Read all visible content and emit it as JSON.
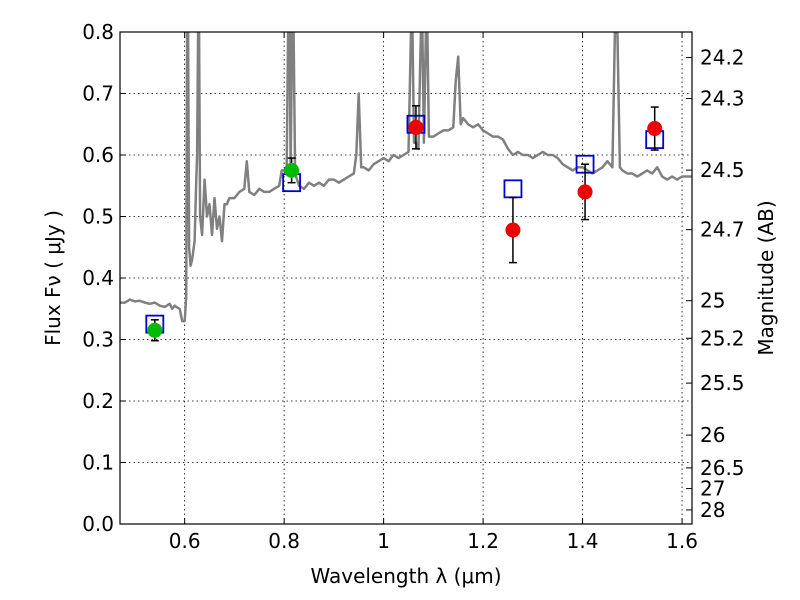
{
  "chart_data": {
    "type": "scatter",
    "xlabel": "Wavelength  λ (μm)",
    "ylabel": "Flux  Fν  ( μJy )",
    "y2label": "Magnitude (AB)",
    "xlim": [
      0.47,
      1.62
    ],
    "ylim": [
      0.0,
      0.8
    ],
    "grid": true,
    "x_ticks": [
      0.6,
      0.8,
      1.0,
      1.2,
      1.4,
      1.6
    ],
    "x_tick_labels": [
      "0.6",
      "0.8",
      "1",
      "1.2",
      "1.4",
      "1.6"
    ],
    "y_ticks": [
      0.0,
      0.1,
      0.2,
      0.3,
      0.4,
      0.5,
      0.6,
      0.7,
      0.8
    ],
    "y_tick_labels": [
      "0.0",
      "0.1",
      "0.2",
      "0.3",
      "0.4",
      "0.5",
      "0.6",
      "0.7",
      "0.8"
    ],
    "mag_ticks": [
      {
        "label": "24.2",
        "value": 24.2
      },
      {
        "label": "24.3",
        "value": 24.3
      },
      {
        "label": "24.5",
        "value": 24.5
      },
      {
        "label": "24.7",
        "value": 24.7
      },
      {
        "label": "25",
        "value": 25.0
      },
      {
        "label": "25.2",
        "value": 25.2
      },
      {
        "label": "25.5",
        "value": 25.5
      },
      {
        "label": "26",
        "value": 26.0
      },
      {
        "label": "26.5",
        "value": 26.5
      },
      {
        "label": "27",
        "value": 27.0
      },
      {
        "label": "28",
        "value": 28.0
      }
    ],
    "colors": {
      "spectrum": "#808080",
      "model": "#0000cc",
      "green": "#00bb00",
      "red": "#ee0000",
      "errorbar": "#000000"
    },
    "spectrum": [
      [
        0.47,
        0.36
      ],
      [
        0.48,
        0.36
      ],
      [
        0.49,
        0.365
      ],
      [
        0.5,
        0.362
      ],
      [
        0.51,
        0.363
      ],
      [
        0.52,
        0.36
      ],
      [
        0.53,
        0.358
      ],
      [
        0.54,
        0.36
      ],
      [
        0.55,
        0.355
      ],
      [
        0.56,
        0.353
      ],
      [
        0.57,
        0.358
      ],
      [
        0.575,
        0.35
      ],
      [
        0.58,
        0.355
      ],
      [
        0.585,
        0.352
      ],
      [
        0.59,
        0.35
      ],
      [
        0.595,
        0.33
      ],
      [
        0.6,
        0.33
      ],
      [
        0.603,
        0.37
      ],
      [
        0.605,
        0.8
      ],
      [
        0.607,
        0.8
      ],
      [
        0.609,
        0.45
      ],
      [
        0.612,
        0.42
      ],
      [
        0.615,
        0.43
      ],
      [
        0.62,
        0.46
      ],
      [
        0.623,
        0.55
      ],
      [
        0.625,
        0.6
      ],
      [
        0.627,
        0.8
      ],
      [
        0.629,
        0.8
      ],
      [
        0.631,
        0.5
      ],
      [
        0.635,
        0.47
      ],
      [
        0.64,
        0.56
      ],
      [
        0.645,
        0.5
      ],
      [
        0.65,
        0.52
      ],
      [
        0.655,
        0.47
      ],
      [
        0.66,
        0.53
      ],
      [
        0.665,
        0.48
      ],
      [
        0.67,
        0.5
      ],
      [
        0.675,
        0.46
      ],
      [
        0.68,
        0.52
      ],
      [
        0.685,
        0.52
      ],
      [
        0.69,
        0.53
      ],
      [
        0.7,
        0.53
      ],
      [
        0.71,
        0.54
      ],
      [
        0.72,
        0.545
      ],
      [
        0.725,
        0.59
      ],
      [
        0.73,
        0.54
      ],
      [
        0.74,
        0.535
      ],
      [
        0.75,
        0.545
      ],
      [
        0.76,
        0.54
      ],
      [
        0.77,
        0.54
      ],
      [
        0.78,
        0.545
      ],
      [
        0.79,
        0.55
      ],
      [
        0.795,
        0.575
      ],
      [
        0.8,
        0.575
      ],
      [
        0.805,
        0.57
      ],
      [
        0.808,
        0.8
      ],
      [
        0.811,
        0.8
      ],
      [
        0.813,
        0.58
      ],
      [
        0.816,
        0.8
      ],
      [
        0.819,
        0.8
      ],
      [
        0.822,
        0.57
      ],
      [
        0.83,
        0.55
      ],
      [
        0.84,
        0.545
      ],
      [
        0.85,
        0.555
      ],
      [
        0.86,
        0.55
      ],
      [
        0.87,
        0.555
      ],
      [
        0.88,
        0.55
      ],
      [
        0.89,
        0.56
      ],
      [
        0.9,
        0.56
      ],
      [
        0.91,
        0.555
      ],
      [
        0.92,
        0.56
      ],
      [
        0.93,
        0.565
      ],
      [
        0.94,
        0.57
      ],
      [
        0.945,
        0.6
      ],
      [
        0.95,
        0.7
      ],
      [
        0.955,
        0.58
      ],
      [
        0.96,
        0.58
      ],
      [
        0.97,
        0.575
      ],
      [
        0.98,
        0.585
      ],
      [
        0.99,
        0.59
      ],
      [
        1.0,
        0.595
      ],
      [
        1.01,
        0.59
      ],
      [
        1.02,
        0.6
      ],
      [
        1.03,
        0.595
      ],
      [
        1.04,
        0.6
      ],
      [
        1.05,
        0.605
      ],
      [
        1.055,
        0.8
      ],
      [
        1.058,
        0.8
      ],
      [
        1.061,
        0.62
      ],
      [
        1.065,
        0.62
      ],
      [
        1.07,
        0.61
      ],
      [
        1.075,
        0.8
      ],
      [
        1.078,
        0.8
      ],
      [
        1.081,
        0.62
      ],
      [
        1.085,
        0.8
      ],
      [
        1.088,
        0.8
      ],
      [
        1.091,
        0.63
      ],
      [
        1.1,
        0.63
      ],
      [
        1.11,
        0.635
      ],
      [
        1.12,
        0.64
      ],
      [
        1.13,
        0.64
      ],
      [
        1.14,
        0.645
      ],
      [
        1.145,
        0.72
      ],
      [
        1.15,
        0.76
      ],
      [
        1.155,
        0.65
      ],
      [
        1.16,
        0.66
      ],
      [
        1.17,
        0.65
      ],
      [
        1.18,
        0.645
      ],
      [
        1.19,
        0.65
      ],
      [
        1.2,
        0.64
      ],
      [
        1.21,
        0.635
      ],
      [
        1.22,
        0.63
      ],
      [
        1.23,
        0.63
      ],
      [
        1.24,
        0.625
      ],
      [
        1.25,
        0.61
      ],
      [
        1.26,
        0.6
      ],
      [
        1.27,
        0.605
      ],
      [
        1.28,
        0.6
      ],
      [
        1.29,
        0.6
      ],
      [
        1.3,
        0.595
      ],
      [
        1.31,
        0.6
      ],
      [
        1.32,
        0.605
      ],
      [
        1.33,
        0.6
      ],
      [
        1.34,
        0.6
      ],
      [
        1.35,
        0.595
      ],
      [
        1.36,
        0.585
      ],
      [
        1.37,
        0.58
      ],
      [
        1.38,
        0.575
      ],
      [
        1.39,
        0.58
      ],
      [
        1.4,
        0.58
      ],
      [
        1.41,
        0.575
      ],
      [
        1.42,
        0.57
      ],
      [
        1.43,
        0.575
      ],
      [
        1.44,
        0.58
      ],
      [
        1.45,
        0.59
      ],
      [
        1.46,
        0.58
      ],
      [
        1.465,
        0.8
      ],
      [
        1.47,
        0.8
      ],
      [
        1.475,
        0.58
      ],
      [
        1.48,
        0.575
      ],
      [
        1.49,
        0.57
      ],
      [
        1.5,
        0.57
      ],
      [
        1.51,
        0.565
      ],
      [
        1.52,
        0.57
      ],
      [
        1.53,
        0.575
      ],
      [
        1.54,
        0.57
      ],
      [
        1.55,
        0.58
      ],
      [
        1.56,
        0.565
      ],
      [
        1.57,
        0.56
      ],
      [
        1.58,
        0.565
      ],
      [
        1.59,
        0.56
      ],
      [
        1.6,
        0.565
      ],
      [
        1.61,
        0.565
      ],
      [
        1.62,
        0.565
      ]
    ],
    "model_points": [
      {
        "x": 0.54,
        "y": 0.325
      },
      {
        "x": 0.815,
        "y": 0.555
      },
      {
        "x": 1.065,
        "y": 0.65
      },
      {
        "x": 1.26,
        "y": 0.545
      },
      {
        "x": 1.405,
        "y": 0.585
      },
      {
        "x": 1.545,
        "y": 0.625
      }
    ],
    "observed_green": [
      {
        "x": 0.54,
        "y": 0.315,
        "err": 0.017
      },
      {
        "x": 0.815,
        "y": 0.575,
        "err": 0.02
      }
    ],
    "observed_red": [
      {
        "x": 1.065,
        "y": 0.645,
        "err": 0.035
      },
      {
        "x": 1.26,
        "y": 0.478,
        "err": 0.053
      },
      {
        "x": 1.405,
        "y": 0.54,
        "err": 0.045
      },
      {
        "x": 1.545,
        "y": 0.643,
        "err": 0.035
      }
    ]
  }
}
